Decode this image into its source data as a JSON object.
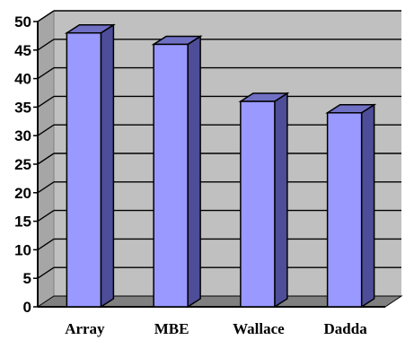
{
  "chart_data": {
    "type": "bar",
    "categories": [
      "Array",
      "MBE",
      "Wallace",
      "Dadda"
    ],
    "values": [
      48,
      46,
      36,
      34
    ],
    "ylim": [
      0,
      50
    ],
    "yticks": [
      "0",
      "5",
      "10",
      "15",
      "20",
      "25",
      "30",
      "35",
      "40",
      "45",
      "50"
    ],
    "grid": true,
    "legend": "none",
    "title": "",
    "xlabel": "",
    "ylabel": "",
    "colors": {
      "bar_front": "#9999ff",
      "bar_side": "#4d4d99",
      "bar_top": "#6f6fc4",
      "plot_back": "#c0c0c0",
      "plot_left_wall": "#a6a6a6",
      "floor": "#808080",
      "gridline": "#000000"
    }
  }
}
